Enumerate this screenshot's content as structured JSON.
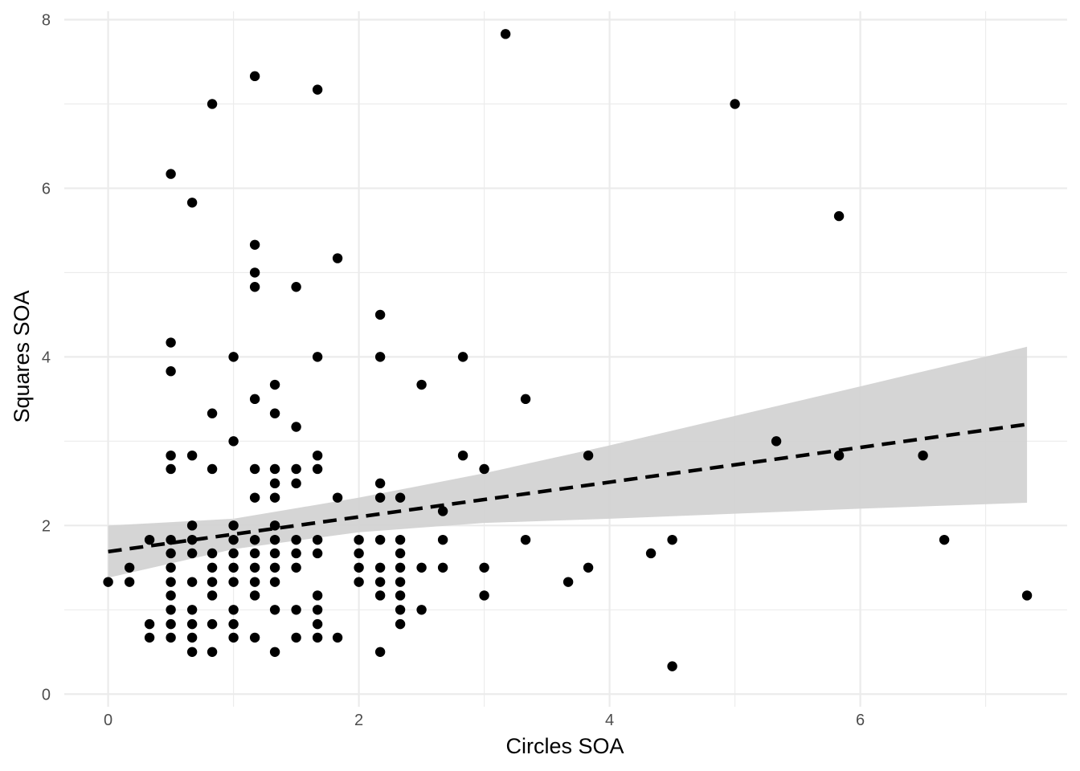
{
  "chart_data": {
    "type": "scatter",
    "xlabel": "Circles SOA",
    "ylabel": "Squares SOA",
    "xlim": [
      -0.35,
      7.65
    ],
    "ylim": [
      -0.15,
      8.1
    ],
    "x_ticks": [
      0,
      2,
      4,
      6
    ],
    "y_ticks": [
      0,
      2,
      4,
      6,
      8
    ],
    "grid": true,
    "colors": {
      "points": "#000000",
      "ribbon": "#d3d3d3",
      "trend": "#000000",
      "grid": "#ebebeb"
    },
    "trend_line": {
      "style": "dashed",
      "x": [
        0,
        7.33
      ],
      "y": [
        1.69,
        3.2
      ]
    },
    "confidence_band": {
      "x": [
        0,
        1,
        2,
        3,
        4,
        5,
        6,
        7.33
      ],
      "lower": [
        1.38,
        1.72,
        1.92,
        2.03,
        2.08,
        2.14,
        2.2,
        2.27
      ],
      "upper": [
        2.0,
        2.08,
        2.33,
        2.62,
        2.95,
        3.3,
        3.65,
        4.12
      ]
    },
    "series": [
      {
        "points": [
          [
            0,
            1.33
          ],
          [
            0.17,
            1.5
          ],
          [
            0.17,
            1.33
          ],
          [
            0.33,
            1.83
          ],
          [
            0.33,
            0.83
          ],
          [
            0.33,
            0.67
          ],
          [
            0.5,
            6.17
          ],
          [
            0.5,
            4.17
          ],
          [
            0.5,
            3.83
          ],
          [
            0.5,
            2.83
          ],
          [
            0.5,
            2.67
          ],
          [
            0.5,
            1.83
          ],
          [
            0.5,
            1.67
          ],
          [
            0.5,
            1.5
          ],
          [
            0.5,
            1.33
          ],
          [
            0.5,
            1.17
          ],
          [
            0.5,
            1.0
          ],
          [
            0.5,
            0.83
          ],
          [
            0.5,
            0.67
          ],
          [
            0.67,
            5.83
          ],
          [
            0.67,
            2.83
          ],
          [
            0.67,
            2.0
          ],
          [
            0.67,
            1.83
          ],
          [
            0.67,
            1.67
          ],
          [
            0.67,
            1.33
          ],
          [
            0.67,
            1.0
          ],
          [
            0.67,
            0.83
          ],
          [
            0.67,
            0.67
          ],
          [
            0.67,
            0.5
          ],
          [
            0.83,
            7.0
          ],
          [
            0.83,
            3.33
          ],
          [
            0.83,
            2.67
          ],
          [
            0.83,
            1.67
          ],
          [
            0.83,
            1.5
          ],
          [
            0.83,
            1.33
          ],
          [
            0.83,
            1.17
          ],
          [
            0.83,
            0.83
          ],
          [
            0.83,
            0.5
          ],
          [
            1.0,
            4.0
          ],
          [
            1.0,
            3.0
          ],
          [
            1.0,
            2.0
          ],
          [
            1.0,
            1.83
          ],
          [
            1.0,
            1.67
          ],
          [
            1.0,
            1.5
          ],
          [
            1.0,
            1.33
          ],
          [
            1.0,
            1.0
          ],
          [
            1.0,
            0.83
          ],
          [
            1.0,
            0.67
          ],
          [
            1.17,
            7.33
          ],
          [
            1.17,
            5.33
          ],
          [
            1.17,
            5.0
          ],
          [
            1.17,
            4.83
          ],
          [
            1.17,
            3.5
          ],
          [
            1.17,
            2.67
          ],
          [
            1.17,
            2.33
          ],
          [
            1.17,
            1.83
          ],
          [
            1.17,
            1.67
          ],
          [
            1.17,
            1.5
          ],
          [
            1.17,
            1.33
          ],
          [
            1.17,
            1.17
          ],
          [
            1.17,
            0.67
          ],
          [
            1.33,
            3.67
          ],
          [
            1.33,
            3.33
          ],
          [
            1.33,
            2.67
          ],
          [
            1.33,
            2.5
          ],
          [
            1.33,
            2.33
          ],
          [
            1.33,
            2.0
          ],
          [
            1.33,
            1.83
          ],
          [
            1.33,
            1.67
          ],
          [
            1.33,
            1.5
          ],
          [
            1.33,
            1.33
          ],
          [
            1.33,
            1.0
          ],
          [
            1.33,
            0.5
          ],
          [
            1.5,
            4.83
          ],
          [
            1.5,
            3.17
          ],
          [
            1.5,
            2.67
          ],
          [
            1.5,
            2.5
          ],
          [
            1.5,
            1.83
          ],
          [
            1.5,
            1.67
          ],
          [
            1.5,
            1.5
          ],
          [
            1.5,
            1.0
          ],
          [
            1.5,
            0.67
          ],
          [
            1.67,
            7.17
          ],
          [
            1.67,
            4.0
          ],
          [
            1.67,
            2.83
          ],
          [
            1.67,
            2.67
          ],
          [
            1.67,
            1.83
          ],
          [
            1.67,
            1.67
          ],
          [
            1.67,
            1.17
          ],
          [
            1.67,
            1.0
          ],
          [
            1.67,
            0.83
          ],
          [
            1.67,
            0.67
          ],
          [
            1.83,
            5.17
          ],
          [
            1.83,
            2.33
          ],
          [
            1.83,
            0.67
          ],
          [
            2.0,
            1.83
          ],
          [
            2.0,
            1.67
          ],
          [
            2.0,
            1.5
          ],
          [
            2.0,
            1.33
          ],
          [
            2.17,
            4.5
          ],
          [
            2.17,
            4.0
          ],
          [
            2.17,
            2.5
          ],
          [
            2.17,
            2.33
          ],
          [
            2.17,
            1.83
          ],
          [
            2.17,
            1.5
          ],
          [
            2.17,
            1.33
          ],
          [
            2.17,
            1.17
          ],
          [
            2.17,
            0.5
          ],
          [
            2.33,
            2.33
          ],
          [
            2.33,
            1.83
          ],
          [
            2.33,
            1.67
          ],
          [
            2.33,
            1.5
          ],
          [
            2.33,
            1.33
          ],
          [
            2.33,
            1.17
          ],
          [
            2.33,
            1.0
          ],
          [
            2.33,
            0.83
          ],
          [
            2.5,
            3.67
          ],
          [
            2.5,
            1.5
          ],
          [
            2.5,
            1.0
          ],
          [
            2.67,
            2.17
          ],
          [
            2.67,
            1.83
          ],
          [
            2.67,
            1.5
          ],
          [
            2.83,
            4.0
          ],
          [
            2.83,
            2.83
          ],
          [
            3.0,
            2.67
          ],
          [
            3.0,
            1.5
          ],
          [
            3.0,
            1.17
          ],
          [
            3.17,
            7.83
          ],
          [
            3.33,
            3.5
          ],
          [
            3.33,
            1.83
          ],
          [
            3.67,
            1.33
          ],
          [
            3.83,
            2.83
          ],
          [
            3.83,
            1.5
          ],
          [
            4.33,
            1.67
          ],
          [
            4.5,
            1.83
          ],
          [
            4.5,
            0.33
          ],
          [
            5.0,
            7.0
          ],
          [
            5.33,
            3.0
          ],
          [
            5.83,
            5.67
          ],
          [
            5.83,
            2.83
          ],
          [
            6.5,
            2.83
          ],
          [
            6.67,
            1.83
          ],
          [
            7.33,
            1.17
          ]
        ]
      }
    ]
  }
}
